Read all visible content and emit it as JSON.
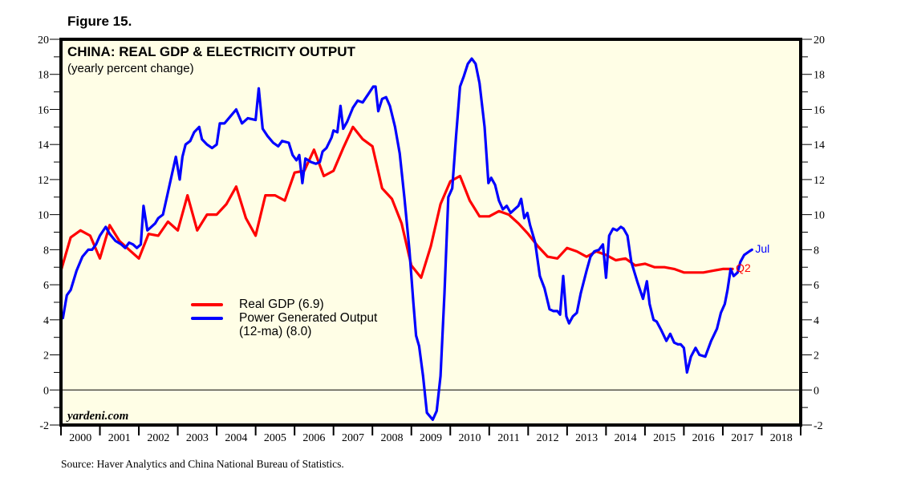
{
  "figure_label": "Figure 15.",
  "watermark": "yardeni.com",
  "source": "Source: Haver Analytics and China National Bureau of Statistics.",
  "colors": {
    "background": "#fffee6",
    "gdp": "#ff0000",
    "power": "#0000ff",
    "frame": "#000000"
  },
  "chart_data": {
    "type": "line",
    "title": "CHINA: REAL GDP & ELECTRICITY OUTPUT",
    "subtitle": "(yearly percent change)",
    "xlabel": "",
    "ylabel": "",
    "xlim": [
      2000,
      2019
    ],
    "ylim": [
      -2,
      20
    ],
    "y_ticks": [
      -2,
      0,
      2,
      4,
      6,
      8,
      10,
      12,
      14,
      16,
      18,
      20
    ],
    "y_tick_labels": [
      "-2",
      "0",
      "2",
      "4",
      "6",
      "8",
      "10",
      "12",
      "14",
      "16",
      "18",
      "20"
    ],
    "x_tick_labels": [
      "2000",
      "2001",
      "2002",
      "2003",
      "2004",
      "2005",
      "2006",
      "2007",
      "2008",
      "2009",
      "2010",
      "2011",
      "2012",
      "2013",
      "2014",
      "2015",
      "2016",
      "2017",
      "2018"
    ],
    "zero_line": true,
    "grid": false,
    "legend_position": "center-left",
    "series": [
      {
        "name": "Real GDP (6.9)",
        "end_label": "Q2",
        "color": "#ff0000",
        "points": [
          [
            2000.0,
            6.8
          ],
          [
            2000.25,
            8.7
          ],
          [
            2000.5,
            9.1
          ],
          [
            2000.75,
            8.8
          ],
          [
            2001.0,
            7.5
          ],
          [
            2001.25,
            9.4
          ],
          [
            2001.5,
            8.5
          ],
          [
            2001.75,
            8.0
          ],
          [
            2002.0,
            7.5
          ],
          [
            2002.25,
            8.9
          ],
          [
            2002.5,
            8.8
          ],
          [
            2002.75,
            9.6
          ],
          [
            2003.0,
            9.1
          ],
          [
            2003.25,
            11.1
          ],
          [
            2003.5,
            9.1
          ],
          [
            2003.75,
            10.0
          ],
          [
            2004.0,
            10.0
          ],
          [
            2004.25,
            10.6
          ],
          [
            2004.5,
            11.6
          ],
          [
            2004.75,
            9.8
          ],
          [
            2005.0,
            8.8
          ],
          [
            2005.25,
            11.1
          ],
          [
            2005.5,
            11.1
          ],
          [
            2005.75,
            10.8
          ],
          [
            2006.0,
            12.4
          ],
          [
            2006.25,
            12.5
          ],
          [
            2006.5,
            13.7
          ],
          [
            2006.75,
            12.2
          ],
          [
            2007.0,
            12.5
          ],
          [
            2007.25,
            13.8
          ],
          [
            2007.5,
            15.0
          ],
          [
            2007.75,
            14.3
          ],
          [
            2008.0,
            13.9
          ],
          [
            2008.25,
            11.5
          ],
          [
            2008.5,
            10.9
          ],
          [
            2008.75,
            9.5
          ],
          [
            2009.0,
            7.1
          ],
          [
            2009.25,
            6.4
          ],
          [
            2009.5,
            8.2
          ],
          [
            2009.75,
            10.6
          ],
          [
            2010.0,
            11.9
          ],
          [
            2010.25,
            12.2
          ],
          [
            2010.5,
            10.8
          ],
          [
            2010.75,
            9.9
          ],
          [
            2011.0,
            9.9
          ],
          [
            2011.25,
            10.2
          ],
          [
            2011.5,
            10.0
          ],
          [
            2011.75,
            9.5
          ],
          [
            2012.0,
            8.9
          ],
          [
            2012.25,
            8.2
          ],
          [
            2012.5,
            7.6
          ],
          [
            2012.75,
            7.5
          ],
          [
            2013.0,
            8.1
          ],
          [
            2013.25,
            7.9
          ],
          [
            2013.5,
            7.6
          ],
          [
            2013.75,
            7.9
          ],
          [
            2014.0,
            7.7
          ],
          [
            2014.25,
            7.4
          ],
          [
            2014.5,
            7.5
          ],
          [
            2014.75,
            7.1
          ],
          [
            2015.0,
            7.2
          ],
          [
            2015.25,
            7.0
          ],
          [
            2015.5,
            7.0
          ],
          [
            2015.75,
            6.9
          ],
          [
            2016.0,
            6.7
          ],
          [
            2016.25,
            6.7
          ],
          [
            2016.5,
            6.7
          ],
          [
            2016.75,
            6.8
          ],
          [
            2017.0,
            6.9
          ],
          [
            2017.25,
            6.9
          ]
        ]
      },
      {
        "name": "Power Generated Output (12-ma) (8.0)",
        "end_label": "Jul",
        "color": "#0000ff",
        "points": [
          [
            2000.05,
            4.1
          ],
          [
            2000.15,
            5.4
          ],
          [
            2000.25,
            5.7
          ],
          [
            2000.4,
            6.8
          ],
          [
            2000.55,
            7.6
          ],
          [
            2000.7,
            8.0
          ],
          [
            2000.8,
            8.0
          ],
          [
            2000.9,
            8.3
          ],
          [
            2001.0,
            8.8
          ],
          [
            2001.15,
            9.3
          ],
          [
            2001.25,
            8.9
          ],
          [
            2001.4,
            8.5
          ],
          [
            2001.55,
            8.3
          ],
          [
            2001.65,
            8.1
          ],
          [
            2001.75,
            8.4
          ],
          [
            2001.85,
            8.3
          ],
          [
            2001.95,
            8.1
          ],
          [
            2002.05,
            8.3
          ],
          [
            2002.12,
            10.5
          ],
          [
            2002.22,
            9.1
          ],
          [
            2002.32,
            9.3
          ],
          [
            2002.42,
            9.5
          ],
          [
            2002.5,
            9.8
          ],
          [
            2002.62,
            10.0
          ],
          [
            2002.72,
            11.0
          ],
          [
            2002.85,
            12.3
          ],
          [
            2002.95,
            13.3
          ],
          [
            2003.05,
            12.0
          ],
          [
            2003.12,
            13.3
          ],
          [
            2003.2,
            14.0
          ],
          [
            2003.32,
            14.2
          ],
          [
            2003.42,
            14.7
          ],
          [
            2003.55,
            15.0
          ],
          [
            2003.62,
            14.3
          ],
          [
            2003.75,
            14.0
          ],
          [
            2003.88,
            13.8
          ],
          [
            2004.0,
            14.0
          ],
          [
            2004.08,
            15.2
          ],
          [
            2004.2,
            15.2
          ],
          [
            2004.35,
            15.6
          ],
          [
            2004.5,
            16.0
          ],
          [
            2004.65,
            15.2
          ],
          [
            2004.8,
            15.5
          ],
          [
            2005.0,
            15.4
          ],
          [
            2005.08,
            17.2
          ],
          [
            2005.18,
            14.9
          ],
          [
            2005.3,
            14.5
          ],
          [
            2005.45,
            14.1
          ],
          [
            2005.58,
            13.9
          ],
          [
            2005.68,
            14.2
          ],
          [
            2005.85,
            14.1
          ],
          [
            2005.95,
            13.4
          ],
          [
            2006.05,
            13.1
          ],
          [
            2006.12,
            13.4
          ],
          [
            2006.2,
            11.8
          ],
          [
            2006.28,
            13.2
          ],
          [
            2006.42,
            13.0
          ],
          [
            2006.55,
            12.9
          ],
          [
            2006.65,
            13.0
          ],
          [
            2006.72,
            13.6
          ],
          [
            2006.82,
            13.8
          ],
          [
            2006.95,
            14.4
          ],
          [
            2007.0,
            14.8
          ],
          [
            2007.1,
            14.7
          ],
          [
            2007.18,
            16.2
          ],
          [
            2007.25,
            14.9
          ],
          [
            2007.35,
            15.3
          ],
          [
            2007.5,
            16.1
          ],
          [
            2007.62,
            16.5
          ],
          [
            2007.75,
            16.4
          ],
          [
            2007.9,
            16.9
          ],
          [
            2008.02,
            17.3
          ],
          [
            2008.08,
            17.3
          ],
          [
            2008.15,
            15.9
          ],
          [
            2008.25,
            16.6
          ],
          [
            2008.35,
            16.7
          ],
          [
            2008.45,
            16.2
          ],
          [
            2008.58,
            15.0
          ],
          [
            2008.7,
            13.5
          ],
          [
            2008.82,
            11.0
          ],
          [
            2008.95,
            8.0
          ],
          [
            2009.05,
            5.0
          ],
          [
            2009.12,
            3.1
          ],
          [
            2009.2,
            2.5
          ],
          [
            2009.3,
            0.8
          ],
          [
            2009.4,
            -1.3
          ],
          [
            2009.55,
            -1.7
          ],
          [
            2009.65,
            -1.2
          ],
          [
            2009.75,
            0.8
          ],
          [
            2009.85,
            5.5
          ],
          [
            2009.95,
            11.0
          ],
          [
            2010.05,
            11.5
          ],
          [
            2010.15,
            14.5
          ],
          [
            2010.25,
            17.3
          ],
          [
            2010.35,
            17.9
          ],
          [
            2010.45,
            18.6
          ],
          [
            2010.55,
            18.9
          ],
          [
            2010.65,
            18.6
          ],
          [
            2010.75,
            17.5
          ],
          [
            2010.88,
            15.0
          ],
          [
            2010.98,
            11.8
          ],
          [
            2011.05,
            12.1
          ],
          [
            2011.15,
            11.7
          ],
          [
            2011.25,
            10.8
          ],
          [
            2011.35,
            10.3
          ],
          [
            2011.45,
            10.5
          ],
          [
            2011.55,
            10.1
          ],
          [
            2011.65,
            10.3
          ],
          [
            2011.75,
            10.5
          ],
          [
            2011.82,
            10.9
          ],
          [
            2011.9,
            9.8
          ],
          [
            2011.98,
            10.1
          ],
          [
            2012.05,
            9.4
          ],
          [
            2012.18,
            8.4
          ],
          [
            2012.3,
            6.5
          ],
          [
            2012.42,
            5.8
          ],
          [
            2012.55,
            4.6
          ],
          [
            2012.65,
            4.5
          ],
          [
            2012.75,
            4.5
          ],
          [
            2012.82,
            4.3
          ],
          [
            2012.9,
            6.5
          ],
          [
            2012.98,
            4.2
          ],
          [
            2013.05,
            3.8
          ],
          [
            2013.15,
            4.2
          ],
          [
            2013.25,
            4.4
          ],
          [
            2013.35,
            5.5
          ],
          [
            2013.5,
            6.8
          ],
          [
            2013.6,
            7.6
          ],
          [
            2013.7,
            7.9
          ],
          [
            2013.82,
            8.0
          ],
          [
            2013.92,
            8.3
          ],
          [
            2014.0,
            6.4
          ],
          [
            2014.08,
            8.8
          ],
          [
            2014.18,
            9.2
          ],
          [
            2014.28,
            9.1
          ],
          [
            2014.38,
            9.3
          ],
          [
            2014.45,
            9.2
          ],
          [
            2014.55,
            8.8
          ],
          [
            2014.65,
            7.3
          ],
          [
            2014.8,
            6.2
          ],
          [
            2014.95,
            5.2
          ],
          [
            2015.05,
            6.2
          ],
          [
            2015.12,
            4.9
          ],
          [
            2015.22,
            4.0
          ],
          [
            2015.3,
            3.9
          ],
          [
            2015.42,
            3.4
          ],
          [
            2015.55,
            2.8
          ],
          [
            2015.65,
            3.2
          ],
          [
            2015.75,
            2.7
          ],
          [
            2015.85,
            2.6
          ],
          [
            2015.92,
            2.6
          ],
          [
            2016.0,
            2.4
          ],
          [
            2016.08,
            1.0
          ],
          [
            2016.18,
            1.9
          ],
          [
            2016.3,
            2.4
          ],
          [
            2016.4,
            2.0
          ],
          [
            2016.55,
            1.9
          ],
          [
            2016.7,
            2.8
          ],
          [
            2016.85,
            3.5
          ],
          [
            2016.95,
            4.4
          ],
          [
            2017.05,
            4.9
          ],
          [
            2017.12,
            5.7
          ],
          [
            2017.2,
            6.9
          ],
          [
            2017.28,
            6.5
          ],
          [
            2017.38,
            6.7
          ],
          [
            2017.45,
            7.3
          ],
          [
            2017.55,
            7.7
          ],
          [
            2017.68,
            7.9
          ],
          [
            2017.75,
            8.0
          ]
        ]
      }
    ]
  }
}
